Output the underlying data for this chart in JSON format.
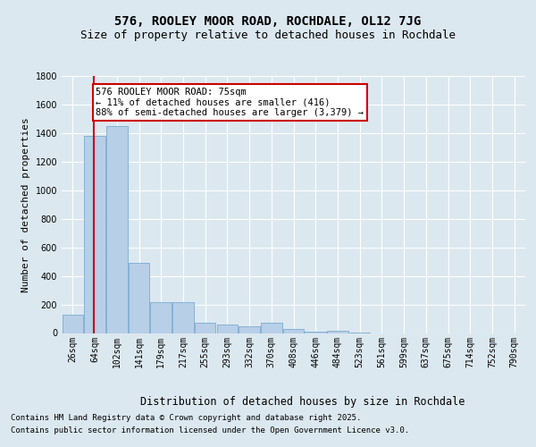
{
  "title": "576, ROOLEY MOOR ROAD, ROCHDALE, OL12 7JG",
  "subtitle": "Size of property relative to detached houses in Rochdale",
  "xlabel": "Distribution of detached houses by size in Rochdale",
  "ylabel": "Number of detached properties",
  "categories": [
    "26sqm",
    "64sqm",
    "102sqm",
    "141sqm",
    "179sqm",
    "217sqm",
    "255sqm",
    "293sqm",
    "332sqm",
    "370sqm",
    "408sqm",
    "446sqm",
    "484sqm",
    "523sqm",
    "561sqm",
    "599sqm",
    "637sqm",
    "675sqm",
    "714sqm",
    "752sqm",
    "790sqm"
  ],
  "values": [
    130,
    1380,
    1450,
    490,
    215,
    215,
    75,
    60,
    45,
    70,
    30,
    10,
    15,
    5,
    0,
    0,
    0,
    0,
    0,
    0,
    0
  ],
  "bar_color": "#b8cfe8",
  "bar_edge_color": "#7aaad0",
  "vline_color": "#cc0000",
  "vline_x": 0.97,
  "annotation_line1": "576 ROOLEY MOOR ROAD: 75sqm",
  "annotation_line2": "← 11% of detached houses are smaller (416)",
  "annotation_line3": "88% of semi-detached houses are larger (3,379) →",
  "annotation_box_edgecolor": "#cc0000",
  "ylim_max": 1800,
  "ytick_step": 200,
  "bg_color": "#dce8f0",
  "footer_line1": "Contains HM Land Registry data © Crown copyright and database right 2025.",
  "footer_line2": "Contains public sector information licensed under the Open Government Licence v3.0.",
  "title_fontsize": 10,
  "subtitle_fontsize": 9,
  "ylabel_fontsize": 8,
  "xlabel_fontsize": 8.5,
  "tick_fontsize": 7,
  "annotation_fontsize": 7.5,
  "footer_fontsize": 6.5
}
